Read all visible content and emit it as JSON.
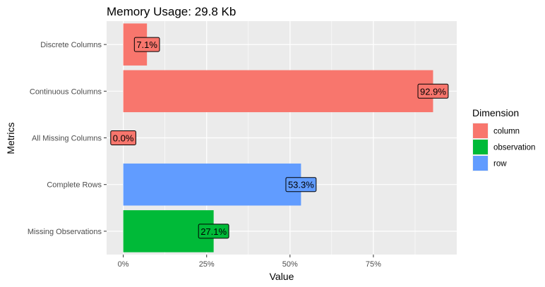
{
  "chart_data": {
    "type": "bar",
    "orientation": "horizontal",
    "title": "Memory Usage: 29.8 Kb",
    "xlabel": "Value",
    "ylabel": "Metrics",
    "xlim": [
      -0.05,
      1.0
    ],
    "x_ticks": [
      {
        "value": 0,
        "label": "0%"
      },
      {
        "value": 0.25,
        "label": "25%"
      },
      {
        "value": 0.5,
        "label": "50%"
      },
      {
        "value": 0.75,
        "label": "75%"
      }
    ],
    "grid": true,
    "legend": {
      "title": "Dimension",
      "placement": "right",
      "entries": [
        {
          "name": "column",
          "color": "#F8766D"
        },
        {
          "name": "observation",
          "color": "#00BA38"
        },
        {
          "name": "row",
          "color": "#619CFF"
        }
      ]
    },
    "bars": [
      {
        "category": "Discrete Columns",
        "value": 0.071,
        "label": "7.1%",
        "dimension": "column"
      },
      {
        "category": "Continuous Columns",
        "value": 0.929,
        "label": "92.9%",
        "dimension": "column"
      },
      {
        "category": "All Missing Columns",
        "value": 0.0,
        "label": "0.0%",
        "dimension": "column"
      },
      {
        "category": "Complete Rows",
        "value": 0.533,
        "label": "53.3%",
        "dimension": "row"
      },
      {
        "category": "Missing Observations",
        "value": 0.271,
        "label": "27.1%",
        "dimension": "observation"
      }
    ],
    "colors": {
      "panel_background": "#EBEBEB",
      "grid_major": "#FFFFFF",
      "tick_text": "#4D4D4D"
    }
  }
}
